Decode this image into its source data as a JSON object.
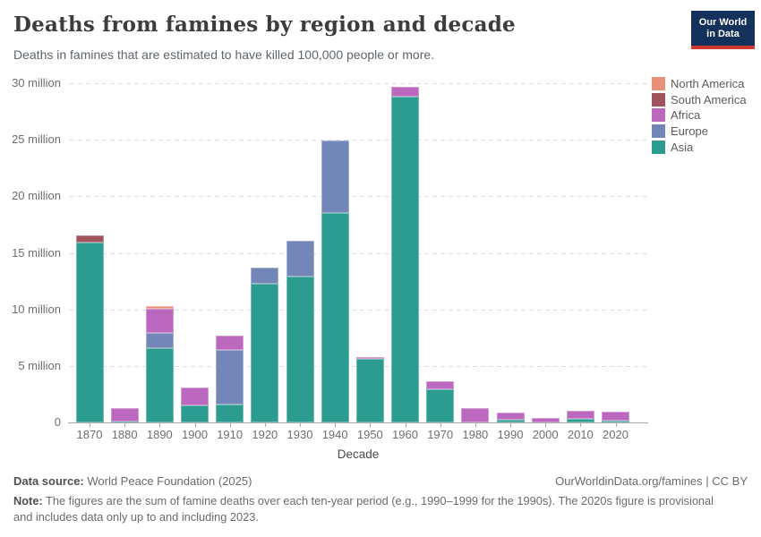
{
  "header": {
    "title": "Deaths from famines by region and decade",
    "subtitle": "Deaths in famines that are estimated to have killed 100,000 people or more.",
    "logo_line1": "Our World",
    "logo_line2": "in Data",
    "logo_bg": "#14315b",
    "logo_accent": "#cf3a2e"
  },
  "chart_data": {
    "type": "bar",
    "stacked": true,
    "title": "Deaths from famines by region and decade",
    "xlabel": "Decade",
    "ylabel": "",
    "ylim": [
      0,
      30
    ],
    "grid": "horizontal-dashed",
    "legend_position": "right",
    "unit": "million deaths",
    "categories": [
      "1870",
      "1880",
      "1890",
      "1900",
      "1910",
      "1920",
      "1930",
      "1940",
      "1950",
      "1960",
      "1970",
      "1980",
      "1990",
      "2000",
      "2010",
      "2020"
    ],
    "series": [
      {
        "name": "North America",
        "color": "#E8907A",
        "values": [
          0,
          0,
          0.25,
          0,
          0,
          0,
          0,
          0,
          0,
          0,
          0,
          0,
          0,
          0,
          0,
          0
        ]
      },
      {
        "name": "South America",
        "color": "#A0545E",
        "values": [
          0.65,
          0,
          0,
          0,
          0,
          0,
          0,
          0,
          0,
          0,
          0,
          0,
          0,
          0,
          0,
          0
        ]
      },
      {
        "name": "Africa",
        "color": "#BC68BE",
        "values": [
          0,
          1.2,
          2.1,
          1.55,
          1.2,
          0,
          0,
          0,
          0.2,
          0.85,
          0.7,
          1.3,
          0.6,
          0.4,
          0.7,
          0.8
        ]
      },
      {
        "name": "Europe",
        "color": "#7286B7",
        "values": [
          0,
          0,
          1.35,
          0,
          4.85,
          1.4,
          3.2,
          6.4,
          0,
          0,
          0,
          0,
          0,
          0,
          0,
          0
        ]
      },
      {
        "name": "Asia",
        "color": "#2C9C91",
        "values": [
          15.9,
          0.1,
          6.6,
          1.5,
          1.6,
          12.3,
          12.9,
          18.5,
          5.6,
          28.85,
          2.95,
          0,
          0.25,
          0,
          0.3,
          0.15
        ]
      }
    ],
    "totals": [
      16.55,
      1.3,
      10.3,
      3.05,
      7.65,
      13.7,
      16.1,
      24.9,
      5.8,
      29.7,
      3.65,
      1.3,
      0.85,
      0.4,
      1.0,
      0.95
    ],
    "y_ticks": [
      {
        "value": 0,
        "label": "0"
      },
      {
        "value": 5,
        "label": "5 million"
      },
      {
        "value": 10,
        "label": "10 million"
      },
      {
        "value": 15,
        "label": "15 million"
      },
      {
        "value": 20,
        "label": "20 million"
      },
      {
        "value": 25,
        "label": "25 million"
      },
      {
        "value": 30,
        "label": "30 million"
      }
    ]
  },
  "footer": {
    "datasource_label": "Data source:",
    "datasource_text": " World Peace Foundation (2025)",
    "attribution": "OurWorldinData.org/famines | CC BY",
    "note_label": "Note:",
    "note_text": " The figures are the sum of famine deaths over each ten-year period (e.g., 1990–1999 for the 1990s). The 2020s figure is provisional and includes data only up to and including 2023."
  }
}
